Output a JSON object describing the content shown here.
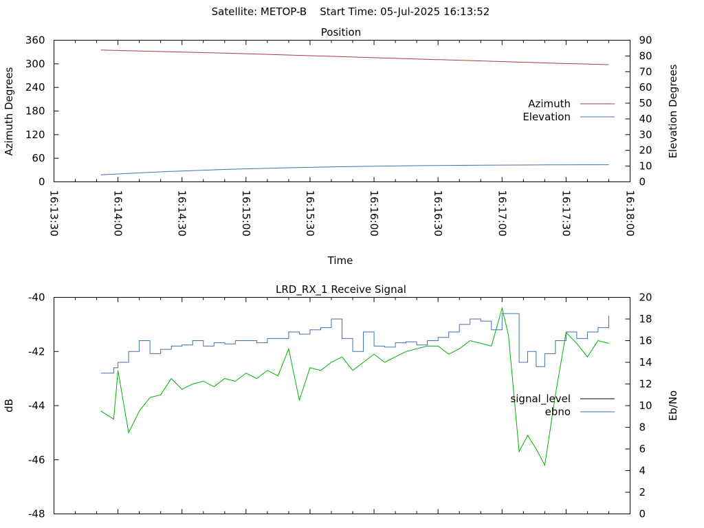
{
  "header": {
    "title": "Satellite: METOP-B    Start Time: 05-Jul-2025 16:13:52"
  },
  "colors": {
    "azimuth": "#b03a3a",
    "elevation": "#3f6fb0",
    "signal_level": "#000000",
    "signal_level_drawn": "#00b000",
    "ebno": "#3f6fb0"
  },
  "chart_data": [
    {
      "type": "line",
      "title": "Position",
      "xlabel": "Time",
      "ylabel": "Azimuth Degrees",
      "y2label": "Elevation Degrees",
      "xlim": [
        "16:13:30",
        "16:18:00"
      ],
      "x_ticks": [
        "16:13:30",
        "16:14:00",
        "16:14:30",
        "16:15:00",
        "16:15:30",
        "16:16:00",
        "16:16:30",
        "16:17:00",
        "16:17:30",
        "16:18:00"
      ],
      "ylim": [
        0,
        360
      ],
      "y_ticks": [
        "0",
        "60",
        "120",
        "180",
        "240",
        "300",
        "360"
      ],
      "y2lim": [
        0,
        90
      ],
      "y2_ticks": [
        "0",
        "10",
        "20",
        "30",
        "40",
        "50",
        "60",
        "70",
        "80",
        "90"
      ],
      "legend_position": "right",
      "grid": false,
      "series": [
        {
          "name": "Azimuth",
          "axis": "y",
          "x": [
            "16:13:52",
            "16:14:22",
            "16:14:52",
            "16:15:22",
            "16:15:52",
            "16:16:22",
            "16:16:52",
            "16:17:22",
            "16:17:50"
          ],
          "values": [
            335,
            331,
            327,
            322,
            317,
            312,
            307,
            302,
            298
          ]
        },
        {
          "name": "Elevation",
          "axis": "y2",
          "x": [
            "16:13:52",
            "16:14:22",
            "16:14:52",
            "16:15:22",
            "16:15:52",
            "16:16:22",
            "16:16:52",
            "16:17:22",
            "16:17:50"
          ],
          "values": [
            4.5,
            6.5,
            8.0,
            9.0,
            9.8,
            10.3,
            10.6,
            10.8,
            10.9
          ]
        }
      ]
    },
    {
      "type": "line",
      "title": "LRD_RX_1 Receive Signal",
      "ylabel": "dB",
      "y2label": "Eb/No",
      "ylim": [
        -48,
        -40
      ],
      "y_ticks": [
        "-48",
        "-46",
        "-44",
        "-42",
        "-40"
      ],
      "y2lim": [
        0,
        20
      ],
      "y2_ticks": [
        "0",
        "2",
        "4",
        "6",
        "8",
        "10",
        "12",
        "14",
        "16",
        "18",
        "20"
      ],
      "legend_position": "right",
      "grid": false,
      "series": [
        {
          "name": "signal_level",
          "axis": "y",
          "x": [
            "16:13:52",
            "16:13:58",
            "16:14:00",
            "16:14:05",
            "16:14:10",
            "16:14:15",
            "16:14:20",
            "16:14:25",
            "16:14:30",
            "16:14:35",
            "16:14:40",
            "16:14:45",
            "16:14:50",
            "16:14:55",
            "16:15:00",
            "16:15:05",
            "16:15:10",
            "16:15:15",
            "16:15:20",
            "16:15:25",
            "16:15:30",
            "16:15:35",
            "16:15:40",
            "16:15:45",
            "16:15:50",
            "16:15:55",
            "16:16:00",
            "16:16:05",
            "16:16:10",
            "16:16:15",
            "16:16:20",
            "16:16:25",
            "16:16:30",
            "16:16:35",
            "16:16:40",
            "16:16:45",
            "16:16:50",
            "16:16:55",
            "16:17:00",
            "16:17:03",
            "16:17:08",
            "16:17:12",
            "16:17:16",
            "16:17:20",
            "16:17:25",
            "16:17:30",
            "16:17:35",
            "16:17:40",
            "16:17:45",
            "16:17:50"
          ],
          "values": [
            -44.2,
            -44.5,
            -42.7,
            -45.0,
            -44.2,
            -43.7,
            -43.6,
            -43.0,
            -43.4,
            -43.2,
            -43.1,
            -43.3,
            -43.0,
            -43.1,
            -42.8,
            -43.0,
            -42.7,
            -42.9,
            -41.9,
            -43.8,
            -42.6,
            -42.7,
            -42.4,
            -42.2,
            -42.7,
            -42.4,
            -42.1,
            -42.4,
            -42.2,
            -42.0,
            -41.9,
            -41.8,
            -41.8,
            -42.1,
            -41.9,
            -41.6,
            -41.7,
            -41.8,
            -40.4,
            -41.4,
            -45.7,
            -45.1,
            -45.6,
            -46.2,
            -43.6,
            -41.3,
            -41.7,
            -42.2,
            -41.6,
            -41.7
          ]
        },
        {
          "name": "ebno",
          "axis": "y2",
          "x": [
            "16:13:52",
            "16:13:58",
            "16:14:00",
            "16:14:05",
            "16:14:10",
            "16:14:15",
            "16:14:20",
            "16:14:25",
            "16:14:30",
            "16:14:35",
            "16:14:40",
            "16:14:45",
            "16:14:50",
            "16:14:55",
            "16:15:00",
            "16:15:05",
            "16:15:10",
            "16:15:15",
            "16:15:20",
            "16:15:25",
            "16:15:30",
            "16:15:35",
            "16:15:40",
            "16:15:45",
            "16:15:50",
            "16:15:55",
            "16:16:00",
            "16:16:05",
            "16:16:10",
            "16:16:15",
            "16:16:20",
            "16:16:25",
            "16:16:30",
            "16:16:35",
            "16:16:40",
            "16:16:45",
            "16:16:50",
            "16:16:55",
            "16:17:00",
            "16:17:03",
            "16:17:08",
            "16:17:12",
            "16:17:16",
            "16:17:20",
            "16:17:25",
            "16:17:30",
            "16:17:35",
            "16:17:40",
            "16:17:45",
            "16:17:50"
          ],
          "values": [
            13.0,
            13.5,
            14.0,
            15.0,
            16.0,
            14.8,
            15.2,
            15.5,
            15.6,
            16.0,
            15.5,
            15.8,
            15.7,
            16.0,
            16.0,
            15.8,
            16.2,
            16.2,
            16.8,
            16.6,
            17.0,
            17.2,
            18.0,
            16.2,
            15.0,
            16.8,
            15.5,
            15.4,
            15.8,
            15.9,
            15.6,
            16.0,
            16.3,
            16.8,
            17.5,
            18.0,
            17.8,
            17.0,
            18.5,
            18.5,
            14.0,
            15.0,
            13.6,
            14.8,
            16.0,
            16.8,
            16.2,
            16.8,
            17.2,
            18.3
          ]
        }
      ]
    }
  ]
}
